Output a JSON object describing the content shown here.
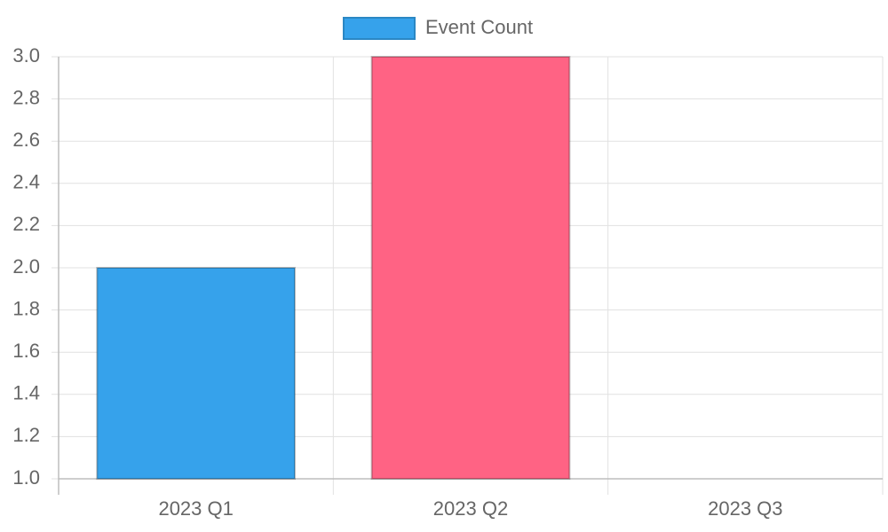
{
  "chart_data": {
    "type": "bar",
    "categories": [
      "2023 Q1",
      "2023 Q2",
      "2023 Q3"
    ],
    "series": [
      {
        "name": "Event Count",
        "colors": [
          "#36a2eb",
          "#ff6384",
          "#ff9f40"
        ],
        "values": [
          2,
          3,
          1
        ]
      }
    ],
    "ylim": [
      1,
      3
    ],
    "yticks": [
      {
        "value": 1,
        "label": "1.0"
      },
      1.2,
      1.4,
      1.6,
      1.8,
      {
        "value": 2,
        "label": "2.0"
      },
      2.2,
      2.4,
      2.6,
      2.8,
      {
        "value": 3,
        "label": "3.0"
      }
    ],
    "grid": true
  }
}
